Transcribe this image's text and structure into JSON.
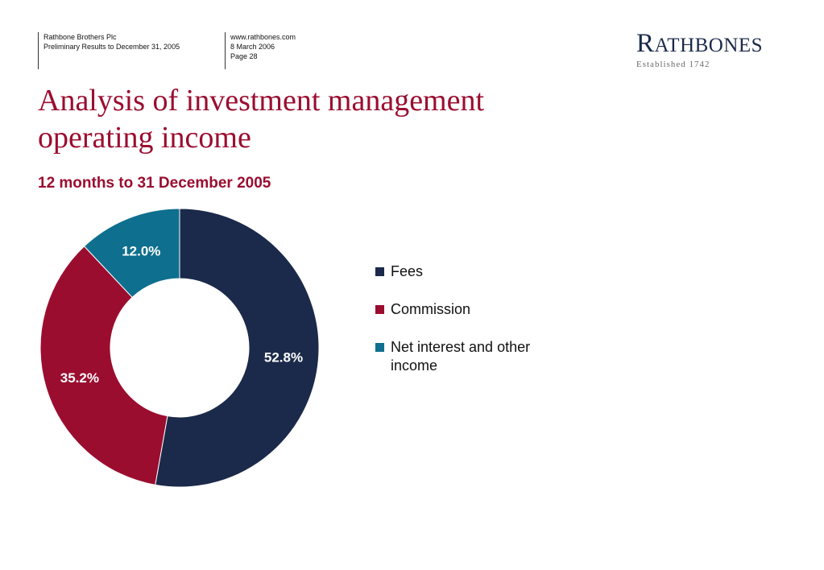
{
  "header": {
    "company": "Rathbone Brothers Plc",
    "report": "Preliminary Results to December 31, 2005",
    "website": "www.rathbones.com",
    "date": "8 March 2006",
    "page": "Page 28"
  },
  "logo": {
    "first_letter": "R",
    "rest": "ATHBONES",
    "tagline": "Established 1742"
  },
  "chart_data": {
    "type": "pie",
    "style": "donut",
    "title": "Analysis of investment management operating income",
    "subtitle": "12 months to 31 December 2005",
    "slices": [
      {
        "name": "Fees",
        "value": 52.8,
        "label": "52.8%",
        "color": "#1b2a4a"
      },
      {
        "name": "Commission",
        "value": 35.2,
        "label": "35.2%",
        "color": "#9b0d2f"
      },
      {
        "name": "Net interest and other income",
        "value": 12.0,
        "label": "12.0%",
        "color": "#0f6f8e"
      }
    ],
    "legend": "right"
  }
}
